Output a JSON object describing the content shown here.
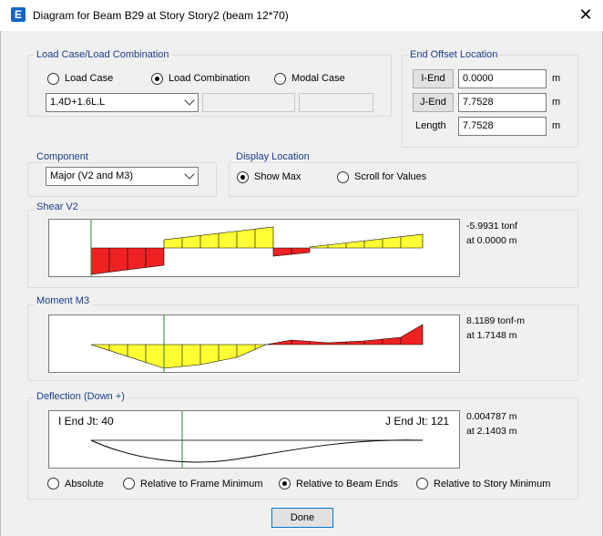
{
  "window": {
    "title": "Diagram for Beam B29 at Story Story2 (beam 12*70)",
    "icon_letter": "E",
    "close_glyph": "✕"
  },
  "load_case": {
    "group_label": "Load Case/Load Combination",
    "options": [
      "Load Case",
      "Load Combination",
      "Modal Case"
    ],
    "selected_index": 1,
    "combo_value": "1.4D+1.6L.L"
  },
  "end_offset": {
    "group_label": "End Offset Location",
    "i_end_label": "I-End",
    "i_end_value": "0.0000",
    "j_end_label": "J-End",
    "j_end_value": "7.7528",
    "length_label": "Length",
    "length_value": "7.7528",
    "unit": "m"
  },
  "component": {
    "group_label": "Component",
    "value": "Major (V2 and M3)"
  },
  "display_location": {
    "group_label": "Display Location",
    "options": [
      "Show Max",
      "Scroll for Values"
    ],
    "selected_index": 0
  },
  "shear": {
    "group_label": "Shear V2",
    "readout_value": "-5.9931 tonf",
    "readout_location": "at 0.0000 m"
  },
  "moment": {
    "group_label": "Moment M3",
    "readout_value": "8.1189 tonf-m",
    "readout_location": "at 1.7148 m"
  },
  "deflection": {
    "group_label": "Deflection (Down +)",
    "i_end_text": "I End Jt: 40",
    "j_end_text": "J End Jt: 121",
    "readout_value": "0.004787 m",
    "readout_location": "at 2.1403 m",
    "options": [
      "Absolute",
      "Relative to Frame Minimum",
      "Relative to Beam Ends",
      "Relative to Story Minimum"
    ],
    "selected_index": 2
  },
  "done_label": "Done",
  "colors": {
    "positive": "#ffff33",
    "negative": "#ee2222",
    "marker": "#2e7d32",
    "group_label": "#1a3c8c"
  }
}
